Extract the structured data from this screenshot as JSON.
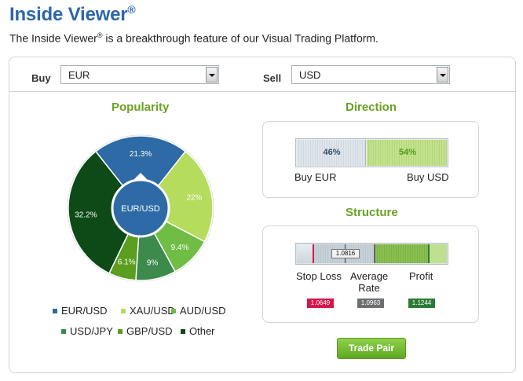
{
  "header": {
    "title": "Inside Viewer",
    "title_mark": "®",
    "subtitle_pre": "The Inside Viewer",
    "subtitle_mark": "®",
    "subtitle_post": " is a breakthrough feature of our Visual Trading Platform."
  },
  "pair": {
    "buy_label": "Buy",
    "buy_value": "EUR",
    "sell_label": "Sell",
    "sell_value": "USD"
  },
  "popularity": {
    "title": "Popularity",
    "center_label": "EUR/USD",
    "slices": [
      {
        "name": "EUR/USD",
        "value": 21.3,
        "label": "21.3%",
        "color": "#2e6aa5"
      },
      {
        "name": "XAU/USD",
        "value": 22.0,
        "label": "22%",
        "color": "#b5dc5c"
      },
      {
        "name": "AUD/USD",
        "value": 9.4,
        "label": "9.4%",
        "color": "#6fbd45"
      },
      {
        "name": "USD/JPY",
        "value": 9.0,
        "label": "9%",
        "color": "#3c8a4c"
      },
      {
        "name": "GBP/USD",
        "value": 6.1,
        "label": "6.1%",
        "color": "#5b9d1e"
      },
      {
        "name": "Other",
        "value": 32.2,
        "label": "32.2%",
        "color": "#0d4a17"
      }
    ]
  },
  "direction": {
    "title": "Direction",
    "left_pct": 46,
    "left_label": "46%",
    "right_label": "54%",
    "left_caption": "Buy EUR",
    "right_caption": "Buy USD",
    "left_color": "#34506b",
    "right_color": "#4f9a1b"
  },
  "structure": {
    "title": "Structure",
    "current_value": "1.0816",
    "stop_loss_label": "Stop Loss",
    "average_label_1": "Average",
    "average_label_2": "Rate",
    "profit_label": "Profit",
    "stop_loss_value": "1.0649",
    "average_value": "1.0963",
    "profit_value": "1.1244",
    "stop_color": "#d6164a",
    "average_color": "#6d6f71",
    "profit_color": "#2b7a33"
  },
  "actions": {
    "trade_label": "Trade Pair"
  }
}
